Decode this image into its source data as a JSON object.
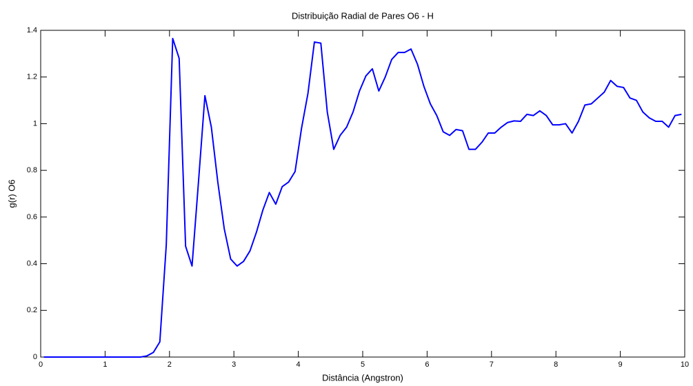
{
  "chart_data": {
    "type": "line",
    "title": "Distribuição Radial de Pares  O6 - H",
    "xlabel": "Distância (Angstron)",
    "ylabel": "g(r) O6",
    "color": "#0000ff",
    "xlim": [
      0,
      10
    ],
    "ylim": [
      0,
      1.4
    ],
    "xticks": [
      0,
      1,
      2,
      3,
      4,
      5,
      6,
      7,
      8,
      9,
      10
    ],
    "yticks": [
      0,
      0.2,
      0.4,
      0.6,
      0.8,
      1,
      1.2,
      1.4
    ],
    "grid": false,
    "x": [
      0.05,
      0.15,
      0.25,
      0.35,
      0.45,
      0.55,
      0.65,
      0.75,
      0.85,
      0.95,
      1.05,
      1.15,
      1.25,
      1.35,
      1.45,
      1.55,
      1.65,
      1.75,
      1.85,
      1.95,
      2.05,
      2.15,
      2.25,
      2.35,
      2.45,
      2.55,
      2.65,
      2.75,
      2.85,
      2.95,
      3.05,
      3.15,
      3.25,
      3.35,
      3.45,
      3.55,
      3.65,
      3.75,
      3.85,
      3.95,
      4.05,
      4.15,
      4.25,
      4.35,
      4.45,
      4.55,
      4.65,
      4.75,
      4.85,
      4.95,
      5.05,
      5.15,
      5.25,
      5.35,
      5.45,
      5.55,
      5.65,
      5.75,
      5.85,
      5.95,
      6.05,
      6.15,
      6.25,
      6.35,
      6.45,
      6.55,
      6.65,
      6.75,
      6.85,
      6.95,
      7.05,
      7.15,
      7.25,
      7.35,
      7.45,
      7.55,
      7.65,
      7.75,
      7.85,
      7.95,
      8.05,
      8.15,
      8.25,
      8.35,
      8.45,
      8.55,
      8.65,
      8.75,
      8.85,
      8.95,
      9.05,
      9.15,
      9.25,
      9.35,
      9.45,
      9.55,
      9.65,
      9.75,
      9.85,
      9.95
    ],
    "values": [
      0,
      0,
      0,
      0,
      0,
      0,
      0,
      0,
      0,
      0,
      0,
      0,
      0,
      0,
      0,
      0,
      0.005,
      0.02,
      0.065,
      0.48,
      1.365,
      1.28,
      0.475,
      0.39,
      0.75,
      1.12,
      0.985,
      0.75,
      0.55,
      0.42,
      0.39,
      0.41,
      0.455,
      0.535,
      0.63,
      0.705,
      0.655,
      0.73,
      0.75,
      0.795,
      0.98,
      1.13,
      1.35,
      1.345,
      1.05,
      0.89,
      0.95,
      0.985,
      1.05,
      1.14,
      1.205,
      1.235,
      1.14,
      1.2,
      1.275,
      1.305,
      1.305,
      1.32,
      1.255,
      1.16,
      1.085,
      1.035,
      0.965,
      0.95,
      0.975,
      0.97,
      0.89,
      0.89,
      0.92,
      0.96,
      0.96,
      0.985,
      1.005,
      1.012,
      1.01,
      1.04,
      1.035,
      1.055,
      1.035,
      0.995,
      0.995,
      1.0,
      0.96,
      1.01,
      1.08,
      1.085,
      1.11,
      1.135,
      1.185,
      1.16,
      1.155,
      1.11,
      1.1,
      1.05,
      1.025,
      1.01,
      1.01,
      0.985,
      1.035,
      1.04
    ]
  }
}
